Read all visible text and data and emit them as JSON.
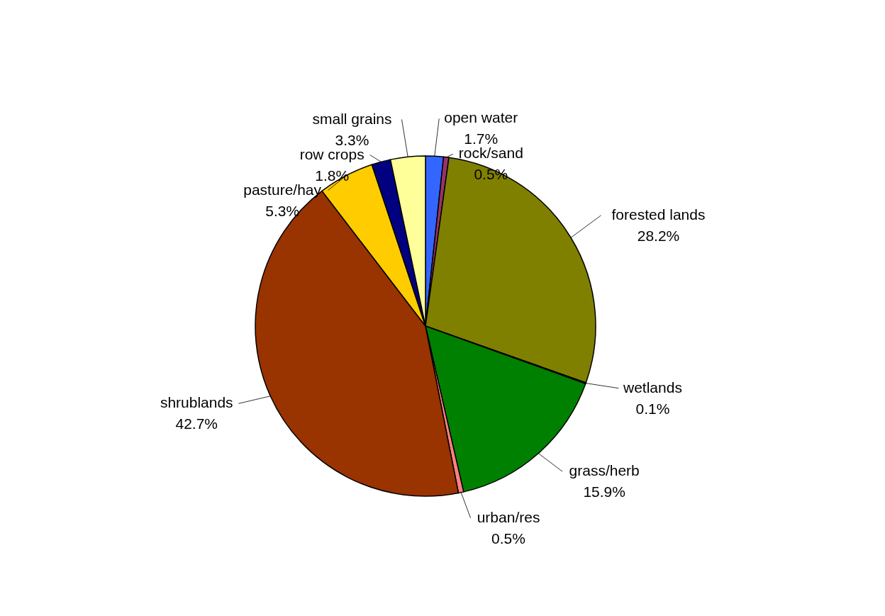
{
  "chart_data": {
    "type": "pie",
    "categories": [
      "open water",
      "rock/sand",
      "forested lands",
      "wetlands",
      "grass/herb",
      "urban/res",
      "shrublands",
      "pasture/hay",
      "row crops",
      "small grains"
    ],
    "values": [
      1.7,
      0.5,
      28.2,
      0.1,
      15.9,
      0.5,
      42.7,
      5.3,
      1.8,
      3.3
    ],
    "value_labels": [
      "1.7%",
      "0.5%",
      "28.2%",
      "0.1%",
      "15.9%",
      "0.5%",
      "42.7%",
      "5.3%",
      "1.8%",
      "3.3%"
    ],
    "colors": [
      "#3366ff",
      "#993366",
      "#808000",
      "#ccffff",
      "#008000",
      "#ff8080",
      "#993300",
      "#ffcc00",
      "#000080",
      "#ffff99"
    ]
  }
}
